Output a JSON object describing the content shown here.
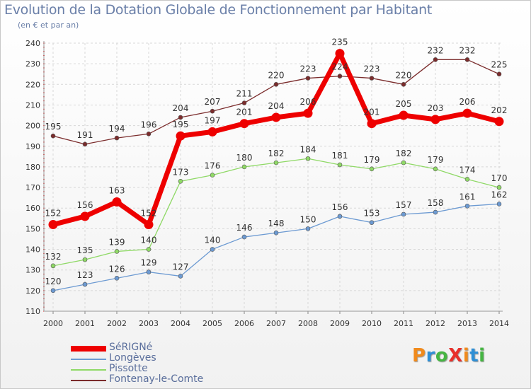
{
  "title": "Evolution de la Dotation Globale de Fonctionnement par Habitant",
  "subtitle": "(en € et par an)",
  "logo": {
    "text": "ProXiti",
    "letters": [
      "P",
      "r",
      "o",
      "X",
      "i",
      "t",
      "i"
    ],
    "colors": [
      "#f08a1c",
      "#2f8fd5",
      "#46b543",
      "#e8302b",
      "#f08a1c",
      "#2f8fd5",
      "#46b543"
    ]
  },
  "chart_data": {
    "type": "line",
    "x": [
      "2000",
      "2001",
      "2002",
      "2003",
      "2004",
      "2005",
      "2006",
      "2007",
      "2008",
      "2009",
      "2010",
      "2011",
      "2012",
      "2013",
      "2014"
    ],
    "ylim": [
      110,
      240
    ],
    "yticks": [
      110,
      120,
      130,
      140,
      150,
      160,
      170,
      180,
      190,
      200,
      210,
      220,
      230,
      240
    ],
    "grid": true,
    "legend_position": "bottom-left",
    "series": [
      {
        "name": "Fontenay-le-Comte",
        "color": "#7b2c2c",
        "values": [
          195,
          191,
          194,
          196,
          204,
          207,
          211,
          220,
          223,
          224,
          223,
          220,
          232,
          232,
          225
        ]
      },
      {
        "name": "Pissotte",
        "color": "#8fd966",
        "values": [
          132,
          135,
          139,
          140,
          173,
          176,
          180,
          182,
          184,
          181,
          179,
          182,
          179,
          174,
          170
        ]
      },
      {
        "name": "Longèves",
        "color": "#6c9ad2",
        "values": [
          120,
          123,
          126,
          129,
          127,
          140,
          146,
          148,
          150,
          156,
          153,
          157,
          158,
          161,
          162
        ]
      },
      {
        "name": "SéRIGNé",
        "color": "#ee0000",
        "values": [
          152,
          156,
          163,
          152,
          195,
          197,
          201,
          204,
          206,
          235,
          201,
          205,
          203,
          206,
          202
        ]
      }
    ],
    "legend_order": [
      "SéRIGNé",
      "Longèves",
      "Pissotte",
      "Fontenay-le-Comte"
    ]
  }
}
